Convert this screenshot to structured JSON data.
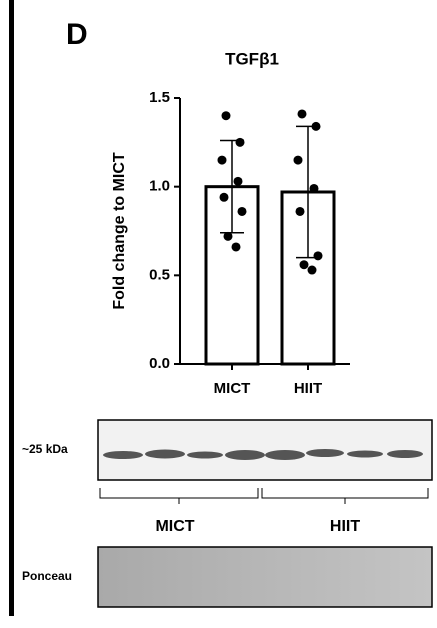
{
  "panel_label": "D",
  "chart_data": {
    "type": "bar",
    "title": "TGFβ1",
    "y_label": "Fold change to MICT",
    "categories": [
      "MICT",
      "HIIT"
    ],
    "values": [
      1.0,
      0.97
    ],
    "errors": [
      0.26,
      0.37
    ],
    "points": [
      [
        1.4,
        1.25,
        1.15,
        1.03,
        0.94,
        0.86,
        0.72,
        0.66
      ],
      [
        1.41,
        1.34,
        1.15,
        0.99,
        0.86,
        0.61,
        0.56,
        0.53
      ]
    ],
    "color": "#ffffff",
    "ylim": [
      0,
      1.5
    ],
    "yticks": [
      {
        "value": 0,
        "label": "0.0"
      },
      {
        "value": 0.5,
        "label": "0.5"
      },
      {
        "value": 1,
        "label": "1.0"
      },
      {
        "value": 1.5,
        "label": "1.5"
      }
    ],
    "grid": false
  },
  "blot": {
    "band_label": "~25 kDa",
    "groups": [
      "MICT",
      "HIIT"
    ],
    "loading_label": "Ponceau"
  }
}
